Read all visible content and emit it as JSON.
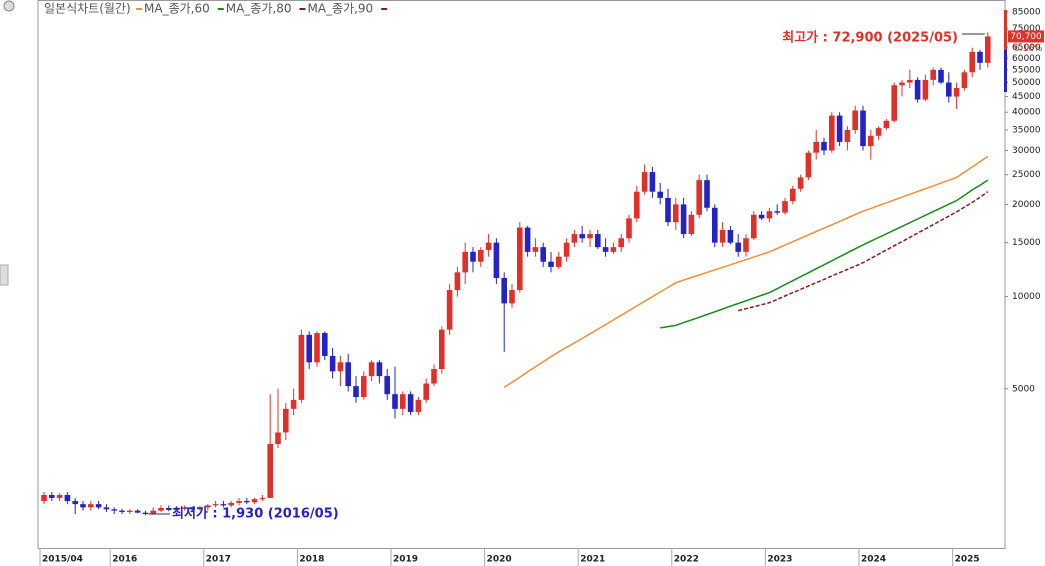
{
  "chart_data": {
    "type": "candlestick",
    "title": "일본식차트(월간)",
    "log_scale": true,
    "up_color": "#e0302a",
    "down_color": "#2323c8",
    "categories": [
      "2015/04",
      null,
      null,
      null,
      null,
      null,
      null,
      null,
      null,
      "2016",
      null,
      null,
      null,
      null,
      null,
      null,
      null,
      null,
      null,
      null,
      null,
      "2017",
      null,
      null,
      null,
      null,
      null,
      null,
      null,
      null,
      null,
      null,
      null,
      "2018",
      null,
      null,
      null,
      null,
      null,
      null,
      null,
      null,
      null,
      null,
      null,
      "2019",
      null,
      null,
      null,
      null,
      null,
      null,
      null,
      null,
      null,
      null,
      null,
      "2020",
      null,
      null,
      null,
      null,
      null,
      null,
      null,
      null,
      null,
      null,
      null,
      "2021",
      null,
      null,
      null,
      null,
      null,
      null,
      null,
      null,
      null,
      null,
      null,
      "2022",
      null,
      null,
      null,
      null,
      null,
      null,
      null,
      null,
      null,
      null,
      null,
      "2023",
      null,
      null,
      null,
      null,
      null,
      null,
      null,
      null,
      null,
      null,
      null,
      "2024",
      null,
      null,
      null,
      null,
      null,
      null,
      null,
      null,
      null,
      null,
      null,
      "2025",
      null,
      null,
      null,
      null
    ],
    "ohlc": [
      [
        2150,
        2300,
        2100,
        2250
      ],
      [
        2250,
        2300,
        2150,
        2200
      ],
      [
        2200,
        2280,
        2150,
        2250
      ],
      [
        2250,
        2300,
        2100,
        2150
      ],
      [
        2150,
        2200,
        1950,
        2100
      ],
      [
        2100,
        2150,
        2000,
        2050
      ],
      [
        2050,
        2150,
        2000,
        2100
      ],
      [
        2100,
        2150,
        2020,
        2050
      ],
      [
        2050,
        2100,
        1980,
        2020
      ],
      [
        2020,
        2050,
        1950,
        2000
      ],
      [
        2000,
        2030,
        1950,
        1980
      ],
      [
        1980,
        2020,
        1950,
        2000
      ],
      [
        2000,
        2020,
        1960,
        1970
      ],
      [
        1970,
        2000,
        1930,
        1950
      ],
      [
        1950,
        2050,
        1940,
        2000
      ],
      [
        2000,
        2080,
        1980,
        2040
      ],
      [
        2040,
        2080,
        1990,
        2010
      ],
      [
        2010,
        2060,
        1990,
        2030
      ],
      [
        2030,
        2080,
        2000,
        2050
      ],
      [
        2050,
        2060,
        1990,
        2020
      ],
      [
        2020,
        2070,
        2000,
        2050
      ],
      [
        2050,
        2100,
        2000,
        2080
      ],
      [
        2080,
        2150,
        2050,
        2100
      ],
      [
        2100,
        2150,
        2050,
        2080
      ],
      [
        2080,
        2150,
        2050,
        2120
      ],
      [
        2120,
        2200,
        2080,
        2150
      ],
      [
        2150,
        2200,
        2100,
        2130
      ],
      [
        2130,
        2200,
        2100,
        2180
      ],
      [
        2180,
        2250,
        2150,
        2200
      ],
      [
        2200,
        4800,
        2200,
        3300
      ],
      [
        3300,
        5000,
        3200,
        3600
      ],
      [
        3600,
        4500,
        3400,
        4300
      ],
      [
        4300,
        5000,
        4100,
        4600
      ],
      [
        4600,
        7800,
        4500,
        7500
      ],
      [
        7500,
        7700,
        5800,
        6100
      ],
      [
        6100,
        7700,
        5900,
        7600
      ],
      [
        7600,
        7700,
        6200,
        6400
      ],
      [
        6400,
        6800,
        5400,
        5700
      ],
      [
        5700,
        6400,
        5100,
        6100
      ],
      [
        6100,
        6500,
        4900,
        5100
      ],
      [
        5100,
        5500,
        4500,
        4700
      ],
      [
        4700,
        5700,
        4600,
        5500
      ],
      [
        5500,
        6200,
        5300,
        6100
      ],
      [
        6100,
        6200,
        5200,
        5500
      ],
      [
        5500,
        5800,
        4600,
        4800
      ],
      [
        4800,
        5900,
        4000,
        4300
      ],
      [
        4300,
        4900,
        4100,
        4800
      ],
      [
        4800,
        4900,
        4100,
        4200
      ],
      [
        4200,
        4700,
        4100,
        4600
      ],
      [
        4600,
        5400,
        4500,
        5200
      ],
      [
        5200,
        6000,
        5100,
        5800
      ],
      [
        5800,
        8000,
        5600,
        7800
      ],
      [
        7800,
        11000,
        7500,
        10500
      ],
      [
        10500,
        12500,
        10000,
        12000
      ],
      [
        12000,
        15000,
        11000,
        14000
      ],
      [
        14000,
        14500,
        12000,
        13000
      ],
      [
        13000,
        14500,
        12500,
        14200
      ],
      [
        14200,
        16000,
        13500,
        15000
      ],
      [
        15000,
        15500,
        11000,
        11500
      ],
      [
        11500,
        12000,
        6600,
        9500
      ],
      [
        9500,
        11000,
        9200,
        10500
      ],
      [
        10500,
        17500,
        10300,
        16800
      ],
      [
        16800,
        17000,
        13500,
        14000
      ],
      [
        14000,
        15500,
        13500,
        14500
      ],
      [
        14500,
        15000,
        12500,
        13000
      ],
      [
        13000,
        14000,
        12000,
        12500
      ],
      [
        12500,
        14000,
        12300,
        13500
      ],
      [
        13500,
        15500,
        13000,
        15000
      ],
      [
        15000,
        16500,
        14500,
        16000
      ],
      [
        16000,
        17000,
        15000,
        15500
      ],
      [
        15500,
        16500,
        14500,
        16000
      ],
      [
        16000,
        16500,
        14300,
        14500
      ],
      [
        14500,
        15500,
        13500,
        14000
      ],
      [
        14000,
        15000,
        13800,
        14500
      ],
      [
        14500,
        16000,
        14000,
        15500
      ],
      [
        15500,
        18500,
        15000,
        18000
      ],
      [
        18000,
        23000,
        17500,
        22000
      ],
      [
        22000,
        27000,
        21500,
        25500
      ],
      [
        25500,
        26500,
        21000,
        22000
      ],
      [
        22000,
        23500,
        20000,
        21000
      ],
      [
        21000,
        22500,
        17000,
        17500
      ],
      [
        17500,
        21000,
        16500,
        20000
      ],
      [
        20000,
        21000,
        15500,
        16000
      ],
      [
        16000,
        19000,
        15800,
        18500
      ],
      [
        18500,
        25000,
        18000,
        24000
      ],
      [
        24000,
        25000,
        19000,
        19500
      ],
      [
        19500,
        20000,
        14500,
        15000
      ],
      [
        15000,
        17500,
        14500,
        16500
      ],
      [
        16500,
        17000,
        14800,
        15000
      ],
      [
        15000,
        16000,
        13500,
        14000
      ],
      [
        14000,
        16000,
        13500,
        15500
      ],
      [
        15500,
        19000,
        15300,
        18500
      ],
      [
        18500,
        19000,
        17800,
        18000
      ],
      [
        18000,
        19500,
        17500,
        19000
      ],
      [
        19000,
        20000,
        18500,
        18800
      ],
      [
        18800,
        21000,
        18500,
        20500
      ],
      [
        20500,
        23000,
        20000,
        22500
      ],
      [
        22500,
        25000,
        22000,
        24500
      ],
      [
        24500,
        30000,
        24000,
        29500
      ],
      [
        29500,
        35000,
        28000,
        32000
      ],
      [
        32000,
        33000,
        29000,
        30000
      ],
      [
        30000,
        40000,
        29500,
        39000
      ],
      [
        39000,
        40000,
        31000,
        32000
      ],
      [
        32000,
        36000,
        30000,
        35000
      ],
      [
        35000,
        42000,
        34000,
        40500
      ],
      [
        40500,
        42000,
        30000,
        31000
      ],
      [
        31000,
        35000,
        28000,
        33500
      ],
      [
        33500,
        36000,
        32500,
        35500
      ],
      [
        35500,
        38000,
        35000,
        37500
      ],
      [
        37500,
        50000,
        37000,
        49000
      ],
      [
        49000,
        51000,
        45000,
        50000
      ],
      [
        50000,
        55000,
        48000,
        51000
      ],
      [
        51000,
        52000,
        43000,
        44000
      ],
      [
        44000,
        53000,
        43500,
        51000
      ],
      [
        51000,
        56000,
        49000,
        55000
      ],
      [
        55000,
        56000,
        49500,
        50000
      ],
      [
        50000,
        54000,
        43000,
        45000
      ],
      [
        45000,
        50000,
        41000,
        48000
      ],
      [
        48000,
        55000,
        47000,
        54000
      ],
      [
        54000,
        65000,
        52000,
        63000
      ],
      [
        63000,
        64000,
        55000,
        58000
      ],
      [
        58000,
        72900,
        56000,
        70700
      ]
    ],
    "series": [
      {
        "name": "MA_종가,60",
        "color": "#f0903a",
        "values": [
          null,
          null,
          null,
          null,
          null,
          null,
          null,
          null,
          null,
          null,
          null,
          null,
          null,
          null,
          null,
          null,
          null,
          null,
          null,
          null,
          null,
          null,
          null,
          null,
          null,
          null,
          null,
          null,
          null,
          null,
          null,
          null,
          null,
          null,
          null,
          null,
          null,
          null,
          null,
          null,
          null,
          null,
          null,
          null,
          null,
          null,
          null,
          null,
          null,
          null,
          null,
          null,
          null,
          null,
          null,
          null,
          null,
          null,
          null,
          5050,
          5250,
          5450,
          5680,
          5900,
          6130,
          6370,
          6600,
          6830,
          7060,
          7300,
          7560,
          7830,
          8100,
          8390,
          8690,
          9000,
          9320,
          9650,
          9990,
          10350,
          10710,
          11100,
          11320,
          11540,
          11760,
          11990,
          12220,
          12460,
          12700,
          12950,
          13200,
          13460,
          13730,
          14000,
          14360,
          14730,
          15110,
          15500,
          15900,
          16310,
          16730,
          17160,
          17600,
          18060,
          18520,
          19000,
          19400,
          19820,
          20240,
          20670,
          21120,
          21570,
          22030,
          22500,
          22980,
          23480,
          23980,
          24500,
          25500,
          26500,
          27600,
          28700
        ]
      },
      {
        "name": "MA_종가,80",
        "color": "#1a8a1a",
        "values": [
          null,
          null,
          null,
          null,
          null,
          null,
          null,
          null,
          null,
          null,
          null,
          null,
          null,
          null,
          null,
          null,
          null,
          null,
          null,
          null,
          null,
          null,
          null,
          null,
          null,
          null,
          null,
          null,
          null,
          null,
          null,
          null,
          null,
          null,
          null,
          null,
          null,
          null,
          null,
          null,
          null,
          null,
          null,
          null,
          null,
          null,
          null,
          null,
          null,
          null,
          null,
          null,
          null,
          null,
          null,
          null,
          null,
          null,
          null,
          null,
          null,
          null,
          null,
          null,
          null,
          null,
          null,
          null,
          null,
          null,
          null,
          null,
          null,
          null,
          null,
          null,
          null,
          null,
          null,
          7900,
          7980,
          8050,
          8220,
          8390,
          8560,
          8740,
          8920,
          9110,
          9300,
          9490,
          9690,
          9890,
          10100,
          10300,
          10610,
          10940,
          11270,
          11610,
          11960,
          12330,
          12700,
          13090,
          13490,
          13900,
          14320,
          14750,
          15170,
          15590,
          16030,
          16480,
          16950,
          17430,
          17920,
          18420,
          18940,
          19480,
          20030,
          20600,
          21400,
          22300,
          23100,
          24000
        ]
      },
      {
        "name": "MA_종가,90",
        "color": "#8b1a1a",
        "dashed": true,
        "values": [
          null,
          null,
          null,
          null,
          null,
          null,
          null,
          null,
          null,
          null,
          null,
          null,
          null,
          null,
          null,
          null,
          null,
          null,
          null,
          null,
          null,
          null,
          null,
          null,
          null,
          null,
          null,
          null,
          null,
          null,
          null,
          null,
          null,
          null,
          null,
          null,
          null,
          null,
          null,
          null,
          null,
          null,
          null,
          null,
          null,
          null,
          null,
          null,
          null,
          null,
          null,
          null,
          null,
          null,
          null,
          null,
          null,
          null,
          null,
          null,
          null,
          null,
          null,
          null,
          null,
          null,
          null,
          null,
          null,
          null,
          null,
          null,
          null,
          null,
          null,
          null,
          null,
          null,
          null,
          null,
          null,
          null,
          null,
          null,
          null,
          null,
          null,
          null,
          null,
          9000,
          9130,
          9270,
          9410,
          9550,
          9790,
          10040,
          10300,
          10560,
          10830,
          11100,
          11380,
          11670,
          11970,
          12270,
          12580,
          12900,
          13320,
          13750,
          14190,
          14650,
          15120,
          15610,
          16120,
          16640,
          17170,
          17730,
          18300,
          18900,
          19600,
          20300,
          21100,
          22000
        ]
      }
    ],
    "ylim": [
      1510,
      93000
    ],
    "yticks": [
      85000,
      75000,
      65000,
      60000,
      55000,
      50000,
      45000,
      40000,
      35000,
      30000,
      25000,
      20000,
      15000,
      10000,
      5000
    ],
    "high_label": "최고가 : 72,900 (2025/05)",
    "low_label": "최저가 : 1,930 (2016/05)",
    "last_price": {
      "value": 70700,
      "label": "70,700"
    },
    "change": {
      "value": 6.16,
      "label": "6.16%"
    }
  }
}
